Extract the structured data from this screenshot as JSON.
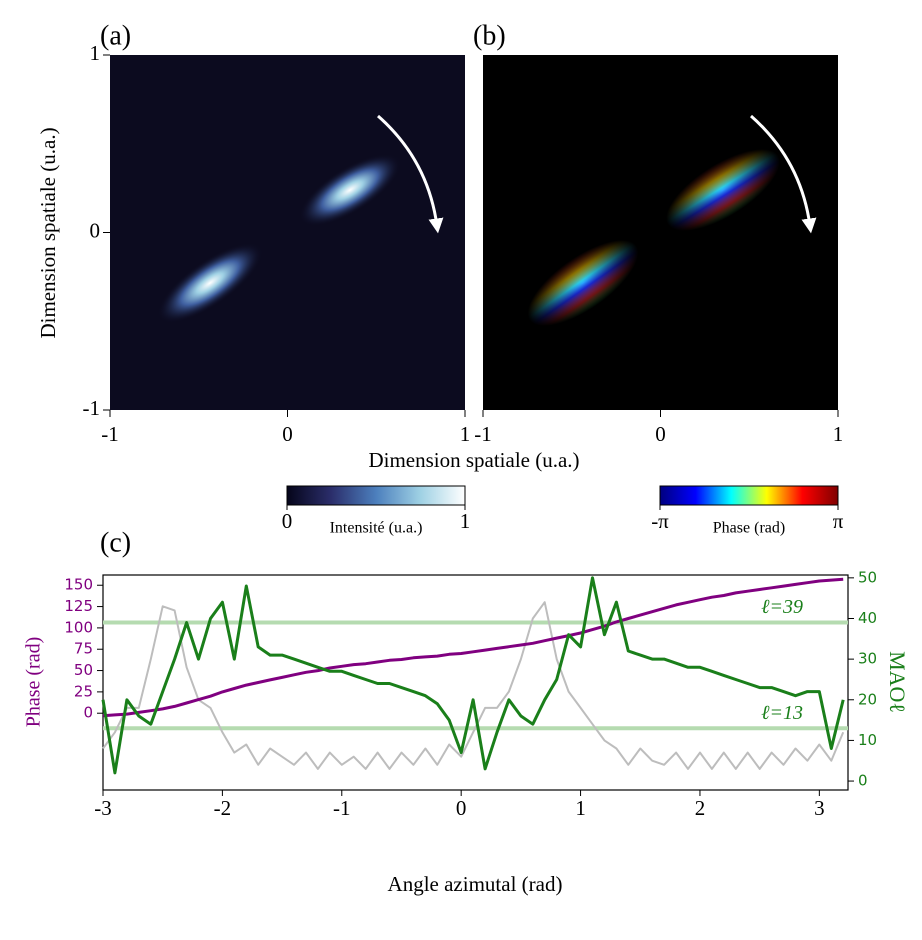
{
  "chart_data": [
    {
      "type": "image",
      "title": "(a)",
      "xlabel": "Dimension spatiale (u.a.)",
      "ylabel": "Dimension spatiale (u.a.)",
      "xlim": [
        -1,
        1
      ],
      "ylim": [
        -1,
        1
      ],
      "xticks": [
        -1,
        0,
        1
      ],
      "yticks": [
        -1,
        0,
        1
      ],
      "colorbar": {
        "label": "Intensité (u.a.)",
        "clim": [
          0,
          1
        ],
        "ticks": [
          0,
          1
        ],
        "colors": [
          "#05051a",
          "#2b2e6b",
          "#4c7fbd",
          "#9fd1e4",
          "#ffffff"
        ]
      }
    },
    {
      "type": "image",
      "title": "(b)",
      "xlim": [
        -1,
        1
      ],
      "xticks": [
        -1,
        0,
        1
      ],
      "colorbar": {
        "label": "Phase (rad)",
        "clim": [
          -3.14159,
          3.14159
        ],
        "ticks": [
          {
            "value": -3.14159,
            "label": "-π"
          },
          {
            "value": 3.14159,
            "label": "π"
          }
        ],
        "colors": [
          "#00007f",
          "#0000ff",
          "#00ffff",
          "#ffff00",
          "#ff0000",
          "#7f0000"
        ]
      }
    },
    {
      "type": "line",
      "title": "(c)",
      "xlabel": "Angle azimutal (rad)",
      "ylabel": "Phase (rad)",
      "y2label": "MAOℓ",
      "xlim": [
        -3,
        3.24
      ],
      "ylim": [
        -90,
        162
      ],
      "y2lim": [
        -2.2,
        50.7
      ],
      "xticks": [
        -3,
        -2,
        -1,
        0,
        1,
        2,
        3
      ],
      "yticks": [
        0,
        25,
        50,
        75,
        100,
        125,
        150
      ],
      "y2ticks": [
        0,
        10,
        20,
        30,
        40,
        50
      ],
      "ycolor": "#800080",
      "y2color": "#1a7f1a",
      "x": [
        -3.0,
        -2.9,
        -2.8,
        -2.7,
        -2.6,
        -2.5,
        -2.4,
        -2.3,
        -2.2,
        -2.1,
        -2.0,
        -1.9,
        -1.8,
        -1.7,
        -1.6,
        -1.5,
        -1.4,
        -1.3,
        -1.2,
        -1.1,
        -1.0,
        -0.9,
        -0.8,
        -0.7,
        -0.6,
        -0.5,
        -0.4,
        -0.3,
        -0.2,
        -0.1,
        0.0,
        0.1,
        0.2,
        0.3,
        0.4,
        0.5,
        0.6,
        0.7,
        0.8,
        0.9,
        1.0,
        1.1,
        1.2,
        1.3,
        1.4,
        1.5,
        1.6,
        1.7,
        1.8,
        1.9,
        2.0,
        2.1,
        2.2,
        2.3,
        2.4,
        2.5,
        2.6,
        2.7,
        2.8,
        2.9,
        3.0,
        3.1,
        3.2
      ],
      "series": [
        {
          "color": "#bdbdbd",
          "axis": "y2",
          "values": [
            8,
            12,
            18,
            18,
            30,
            43,
            42,
            28,
            20,
            18,
            12,
            7,
            9,
            4,
            8,
            6,
            4,
            7,
            3,
            7,
            4,
            6,
            3,
            7,
            3,
            7,
            4,
            8,
            4,
            9,
            6,
            12,
            18,
            18,
            22,
            30,
            40,
            44,
            30,
            22,
            18,
            14,
            10,
            8,
            4,
            8,
            5,
            4,
            7,
            3,
            7,
            3,
            7,
            3,
            7,
            3,
            7,
            4,
            8,
            5,
            9,
            5,
            12
          ]
        },
        {
          "color": "#800080",
          "axis": "y",
          "values": [
            -3,
            -2,
            -1,
            1,
            3,
            5,
            8,
            12,
            16,
            20,
            25,
            29,
            33,
            36,
            39,
            42,
            45,
            48,
            50,
            53,
            55,
            57,
            58,
            60,
            62,
            63,
            65,
            66,
            67,
            69,
            70,
            72,
            74,
            76,
            78,
            80,
            82,
            85,
            88,
            91,
            94,
            98,
            102,
            107,
            111,
            115,
            119,
            123,
            127,
            130,
            133,
            136,
            138,
            141,
            143,
            145,
            147,
            149,
            151,
            153,
            155,
            156,
            157
          ]
        },
        {
          "color": "#1a7f1a",
          "axis": "y2",
          "values": [
            20,
            2,
            20,
            16,
            14,
            22,
            30,
            39,
            30,
            40,
            44,
            30,
            48,
            33,
            31,
            31,
            30,
            29,
            28,
            27,
            27,
            26,
            25,
            24,
            24,
            23,
            22,
            21,
            19,
            15,
            7,
            20,
            3,
            12,
            20,
            16,
            14,
            20,
            25,
            36,
            33,
            50,
            36,
            44,
            32,
            31,
            30,
            30,
            29,
            28,
            28,
            27,
            26,
            25,
            24,
            23,
            23,
            22,
            21,
            22,
            22,
            8,
            20
          ]
        }
      ],
      "hlines": [
        {
          "value": 39,
          "label": "ℓ=39",
          "axis": "y2"
        },
        {
          "value": 13,
          "label": "ℓ=13",
          "axis": "y2"
        }
      ],
      "hline_color": "#b5dbb0"
    }
  ]
}
